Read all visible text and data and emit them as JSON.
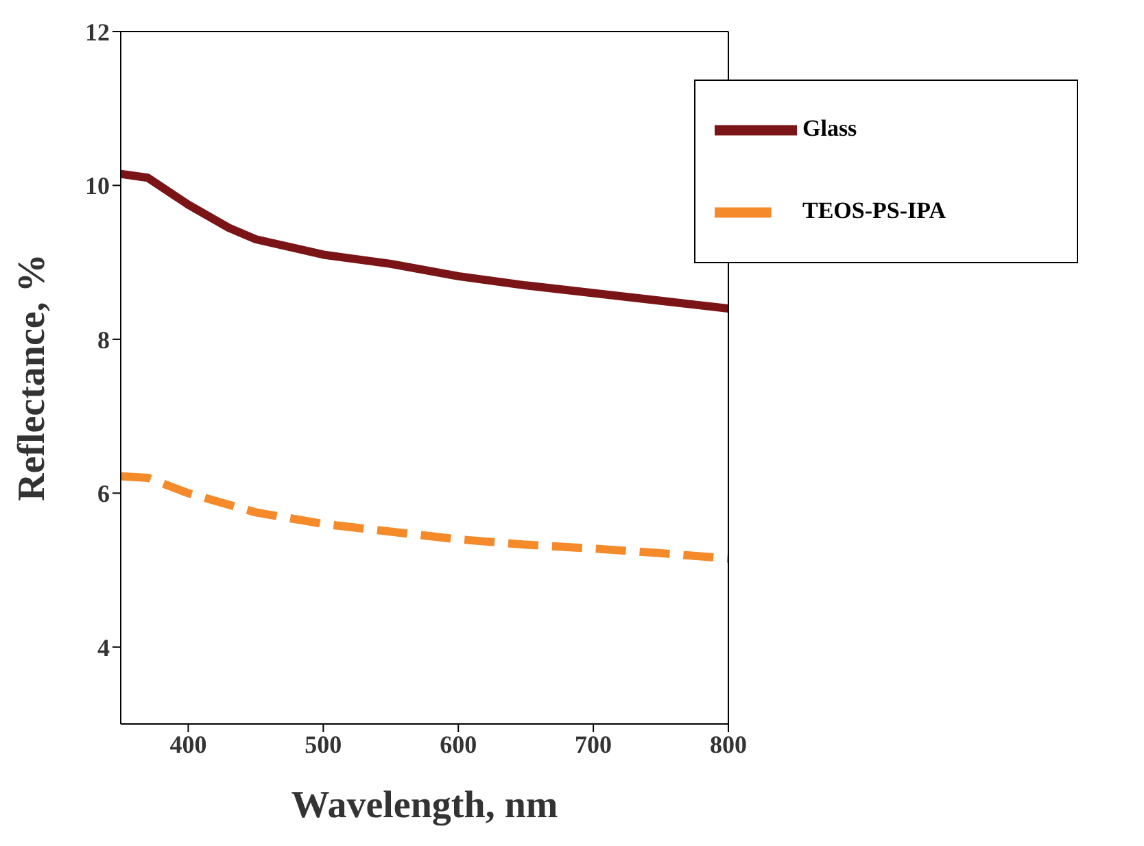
{
  "chart_data": {
    "type": "line",
    "xlabel": "Wavelength, nm",
    "ylabel": "Reflectance, %",
    "x": [
      350,
      370,
      400,
      430,
      450,
      500,
      550,
      600,
      650,
      700,
      750,
      800
    ],
    "series": [
      {
        "name": "Glass",
        "color": "#7b1416",
        "line_style": "solid",
        "values": [
          10.15,
          10.1,
          9.75,
          9.45,
          9.3,
          9.1,
          8.98,
          8.82,
          8.7,
          8.6,
          8.5,
          8.4
        ]
      },
      {
        "name": "TEOS-PS-IPA",
        "color": "#f58a2a",
        "line_style": "dashed",
        "values": [
          6.22,
          6.2,
          6.0,
          5.85,
          5.75,
          5.6,
          5.5,
          5.4,
          5.33,
          5.28,
          5.22,
          5.15
        ]
      }
    ],
    "xlim": [
      350,
      800
    ],
    "xticks": [
      400,
      500,
      600,
      700,
      800
    ],
    "ylim": [
      3,
      12
    ],
    "yticks": [
      4,
      6,
      8,
      10,
      12
    ],
    "grid": false,
    "legend": "top right",
    "marker": "none"
  }
}
